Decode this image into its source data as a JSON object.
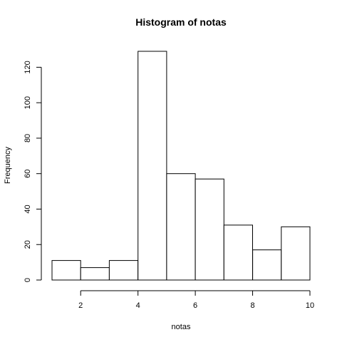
{
  "chart_data": {
    "type": "bar",
    "title": "Histogram of notas",
    "xlabel": "notas",
    "ylabel": "Frequency",
    "bins": [
      {
        "from": 1,
        "to": 2,
        "count": 11
      },
      {
        "from": 2,
        "to": 3,
        "count": 7
      },
      {
        "from": 3,
        "to": 4,
        "count": 11
      },
      {
        "from": 4,
        "to": 5,
        "count": 129
      },
      {
        "from": 5,
        "to": 6,
        "count": 60
      },
      {
        "from": 6,
        "to": 7,
        "count": 57
      },
      {
        "from": 7,
        "to": 8,
        "count": 31
      },
      {
        "from": 8,
        "to": 9,
        "count": 17
      },
      {
        "from": 9,
        "to": 10,
        "count": 30
      }
    ],
    "xticks": [
      2,
      4,
      6,
      8,
      10
    ],
    "yticks": [
      0,
      20,
      40,
      60,
      80,
      100,
      120
    ],
    "xlim": [
      1,
      10
    ],
    "ylim": [
      0,
      129
    ],
    "grid": false
  }
}
